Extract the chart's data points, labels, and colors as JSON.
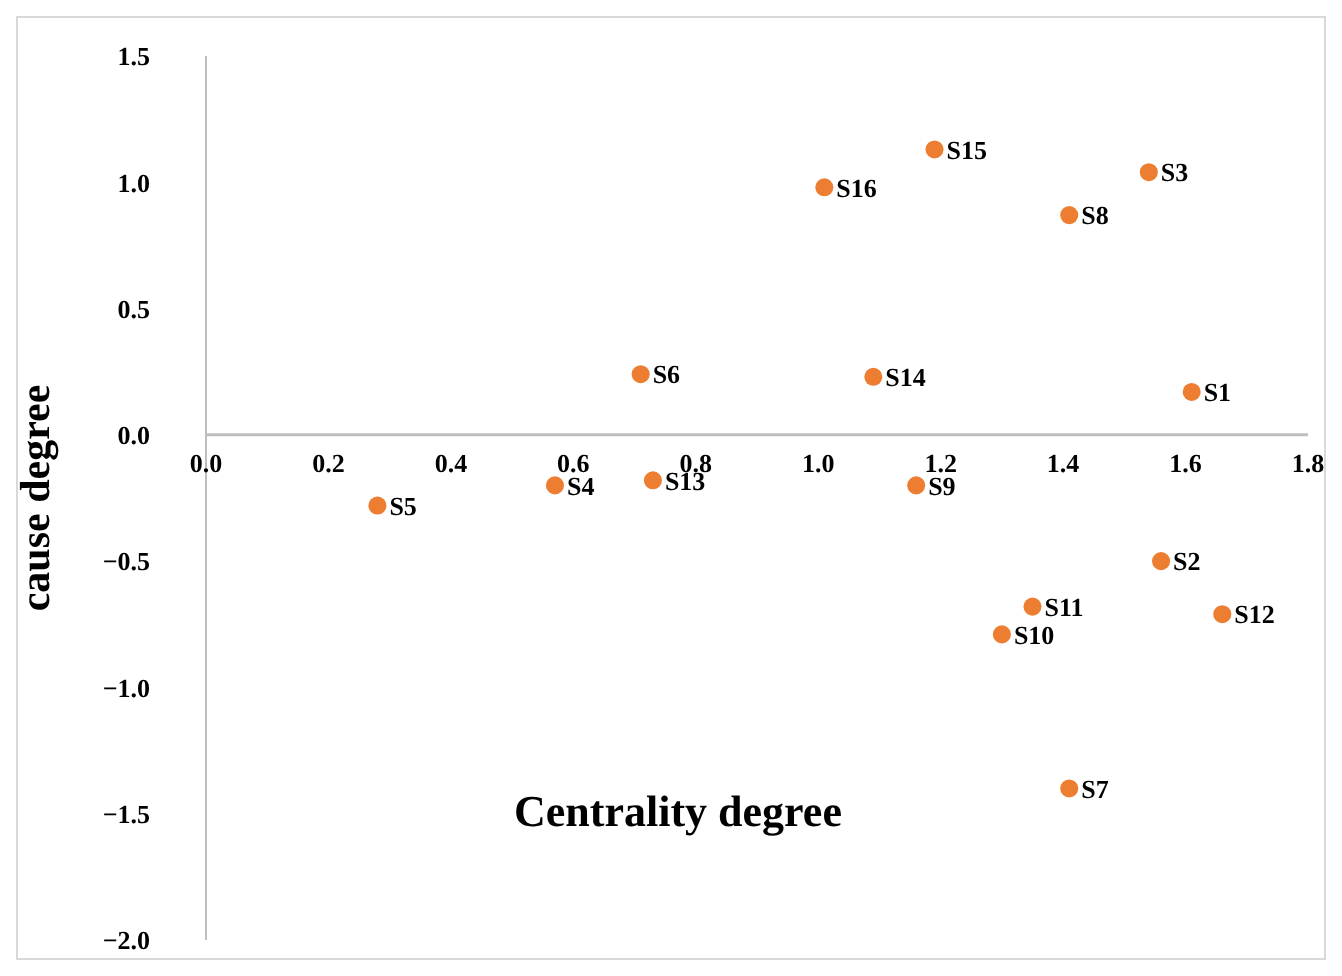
{
  "chart_data": {
    "type": "scatter",
    "xlabel": "Centrality degree",
    "ylabel": "cause degree",
    "x": [
      1.61,
      1.56,
      1.54,
      0.57,
      0.28,
      0.71,
      1.41,
      1.41,
      1.16,
      1.3,
      1.35,
      1.66,
      0.73,
      1.09,
      1.19,
      1.01
    ],
    "series": [
      {
        "color": "#ed7d31",
        "values": [
          0.17,
          -0.5,
          1.04,
          -0.2,
          -0.28,
          0.24,
          -1.4,
          0.87,
          -0.2,
          -0.79,
          -0.68,
          -0.71,
          -0.18,
          0.23,
          1.13,
          0.98
        ]
      }
    ],
    "annotations": [
      {
        "text": "S1",
        "x": 1.61,
        "y": 0.17
      },
      {
        "text": "S2",
        "x": 1.56,
        "y": -0.5
      },
      {
        "text": "S3",
        "x": 1.54,
        "y": 1.04
      },
      {
        "text": "S4",
        "x": 0.57,
        "y": -0.2
      },
      {
        "text": "S5",
        "x": 0.28,
        "y": -0.28
      },
      {
        "text": "S6",
        "x": 0.71,
        "y": 0.24
      },
      {
        "text": "S7",
        "x": 1.41,
        "y": -1.4
      },
      {
        "text": "S8",
        "x": 1.41,
        "y": 0.87
      },
      {
        "text": "S9",
        "x": 1.16,
        "y": -0.2
      },
      {
        "text": "S10",
        "x": 1.3,
        "y": -0.79
      },
      {
        "text": "S11",
        "x": 1.35,
        "y": -0.68
      },
      {
        "text": "S12",
        "x": 1.66,
        "y": -0.71
      },
      {
        "text": "S13",
        "x": 0.73,
        "y": -0.18
      },
      {
        "text": "S14",
        "x": 1.09,
        "y": 0.23
      },
      {
        "text": "S15",
        "x": 1.19,
        "y": 1.13
      },
      {
        "text": "S16",
        "x": 1.01,
        "y": 0.98
      }
    ],
    "xlim": [
      0,
      1.8
    ],
    "xticks": [
      {
        "value": 0,
        "label": "0.0"
      },
      {
        "value": 0.2,
        "label": "0.2"
      },
      {
        "value": 0.4,
        "label": "0.4"
      },
      {
        "value": 0.6,
        "label": "0.6"
      },
      {
        "value": 0.8,
        "label": "0.8"
      },
      {
        "value": 1,
        "label": "1.0"
      },
      {
        "value": 1.2,
        "label": "1.2"
      },
      {
        "value": 1.4,
        "label": "1.4"
      },
      {
        "value": 1.6,
        "label": "1.6"
      },
      {
        "value": 1.8,
        "label": "1.8"
      }
    ],
    "ylim": [
      -2,
      1.5
    ],
    "yticks": [
      {
        "value": -2,
        "label": "−2.0"
      },
      {
        "value": -1.5,
        "label": "−1.5"
      },
      {
        "value": -1,
        "label": "−1.0"
      },
      {
        "value": -0.5,
        "label": "−0.5"
      },
      {
        "value": 0,
        "label": "0.0"
      },
      {
        "value": 0.5,
        "label": "0.5"
      },
      {
        "value": 1,
        "label": "1.0"
      },
      {
        "value": 1.5,
        "label": "1.5"
      }
    ],
    "grid": false,
    "legend": false,
    "marker": "circle"
  }
}
